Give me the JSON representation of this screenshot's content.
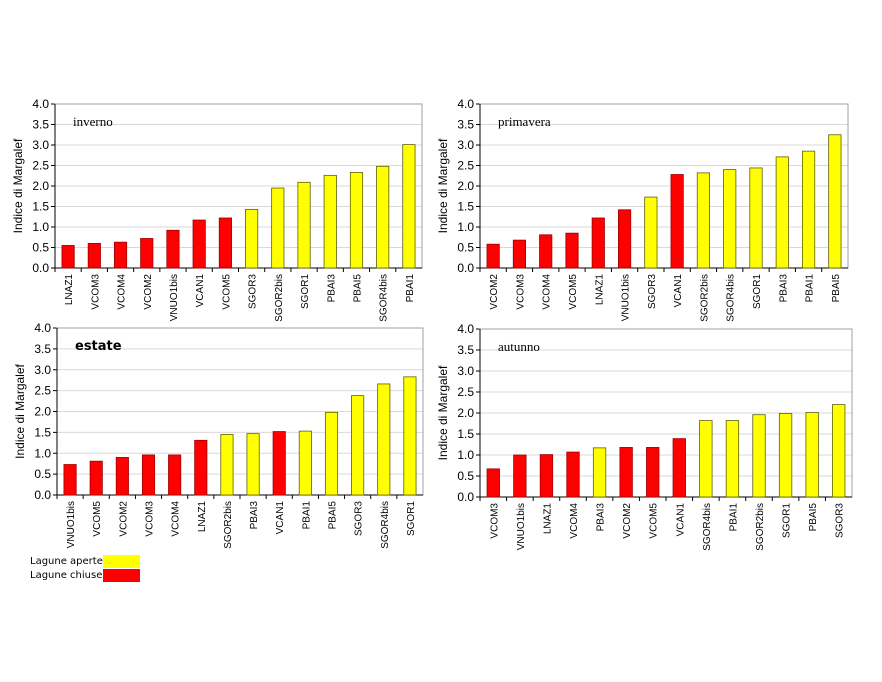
{
  "colors": {
    "aperte": "#ffff00",
    "chiuse": "#ff0000",
    "outline": "#606000"
  },
  "legend": [
    {
      "label": "Lagune aperte",
      "type": "a"
    },
    {
      "label": "Lagune chiuse",
      "type": "c"
    }
  ],
  "chart_data": [
    {
      "type": "bar",
      "title": "inverno",
      "ylabel": "Indice di Margalef",
      "ylim": [
        0,
        4.0
      ],
      "yticks": [
        "0.0",
        "0.5",
        "1.0",
        "1.5",
        "2.0",
        "2.5",
        "3.0",
        "3.5",
        "4.0"
      ],
      "grid": true,
      "categories": [
        "LNAZ1",
        "VCOM3",
        "VCOM4",
        "VCOM2",
        "VNUO1bis",
        "VCAN1",
        "VCOM5",
        "SGOR3",
        "SGOR2bis",
        "SGOR1",
        "PBAI3",
        "PBAI5",
        "SGOR4bis",
        "PBAI1"
      ],
      "values": [
        0.55,
        0.6,
        0.63,
        0.72,
        0.92,
        1.17,
        1.22,
        1.43,
        1.95,
        2.09,
        2.26,
        2.33,
        2.48,
        3.01
      ],
      "types": [
        "c",
        "c",
        "c",
        "c",
        "c",
        "c",
        "c",
        "a",
        "a",
        "a",
        "a",
        "a",
        "a",
        "a"
      ]
    },
    {
      "type": "bar",
      "title": "primavera",
      "ylabel": "Indice di Margalef",
      "ylim": [
        0,
        4.0
      ],
      "yticks": [
        "0.0",
        "0.5",
        "1.0",
        "1.5",
        "2.0",
        "2.5",
        "3.0",
        "3.5",
        "4.0"
      ],
      "grid": true,
      "categories": [
        "VCOM2",
        "VCOM3",
        "VCOM4",
        "VCOM5",
        "LNAZ1",
        "VNUO1bis",
        "SGOR3",
        "VCAN1",
        "SGOR2bis",
        "SGOR4bis",
        "SGOR1",
        "PBAI3",
        "PBAI1",
        "PBAI5"
      ],
      "values": [
        0.58,
        0.68,
        0.81,
        0.85,
        1.22,
        1.42,
        1.73,
        2.28,
        2.32,
        2.4,
        2.44,
        2.71,
        2.85,
        3.25
      ],
      "types": [
        "c",
        "c",
        "c",
        "c",
        "c",
        "c",
        "a",
        "c",
        "a",
        "a",
        "a",
        "a",
        "a",
        "a"
      ]
    },
    {
      "type": "bar",
      "title": "estate",
      "ylabel": "Indice di Margalef",
      "ylim": [
        0,
        4.0
      ],
      "yticks": [
        "0.0",
        "0.5",
        "1.0",
        "1.5",
        "2.0",
        "2.5",
        "3.0",
        "3.5",
        "4.0"
      ],
      "grid": true,
      "categories": [
        "VNUO1bis",
        "VCOM5",
        "VCOM2",
        "VCOM3",
        "VCOM4",
        "LNAZ1",
        "SGOR2bis",
        "PBAI3",
        "VCAN1",
        "PBAI1",
        "PBAI5",
        "SGOR3",
        "SGOR4bis",
        "SGOR1"
      ],
      "values": [
        0.73,
        0.81,
        0.9,
        0.96,
        0.96,
        1.31,
        1.45,
        1.47,
        1.52,
        1.53,
        1.98,
        2.38,
        2.66,
        2.83
      ],
      "types": [
        "c",
        "c",
        "c",
        "c",
        "c",
        "c",
        "a",
        "a",
        "c",
        "a",
        "a",
        "a",
        "a",
        "a"
      ]
    },
    {
      "type": "bar",
      "title": "autunno",
      "ylabel": "Indice di Margalef",
      "ylim": [
        0,
        4.0
      ],
      "yticks": [
        "0.0",
        "0.5",
        "1.0",
        "1.5",
        "2.0",
        "2.5",
        "3.0",
        "3.5",
        "4.0"
      ],
      "grid": true,
      "categories": [
        "VCOM3",
        "VNUO1bis",
        "LNAZ1",
        "VCOM4",
        "PBAI3",
        "VCOM2",
        "VCOM5",
        "VCAN1",
        "SGOR4bis",
        "PBAI1",
        "SGOR2bis",
        "SGOR1",
        "PBAI5",
        "SGOR3"
      ],
      "values": [
        0.67,
        1.0,
        1.01,
        1.07,
        1.17,
        1.18,
        1.18,
        1.39,
        1.82,
        1.82,
        1.96,
        1.99,
        2.01,
        2.2
      ],
      "types": [
        "c",
        "c",
        "c",
        "c",
        "a",
        "c",
        "c",
        "c",
        "a",
        "a",
        "a",
        "a",
        "a",
        "a"
      ]
    }
  ]
}
